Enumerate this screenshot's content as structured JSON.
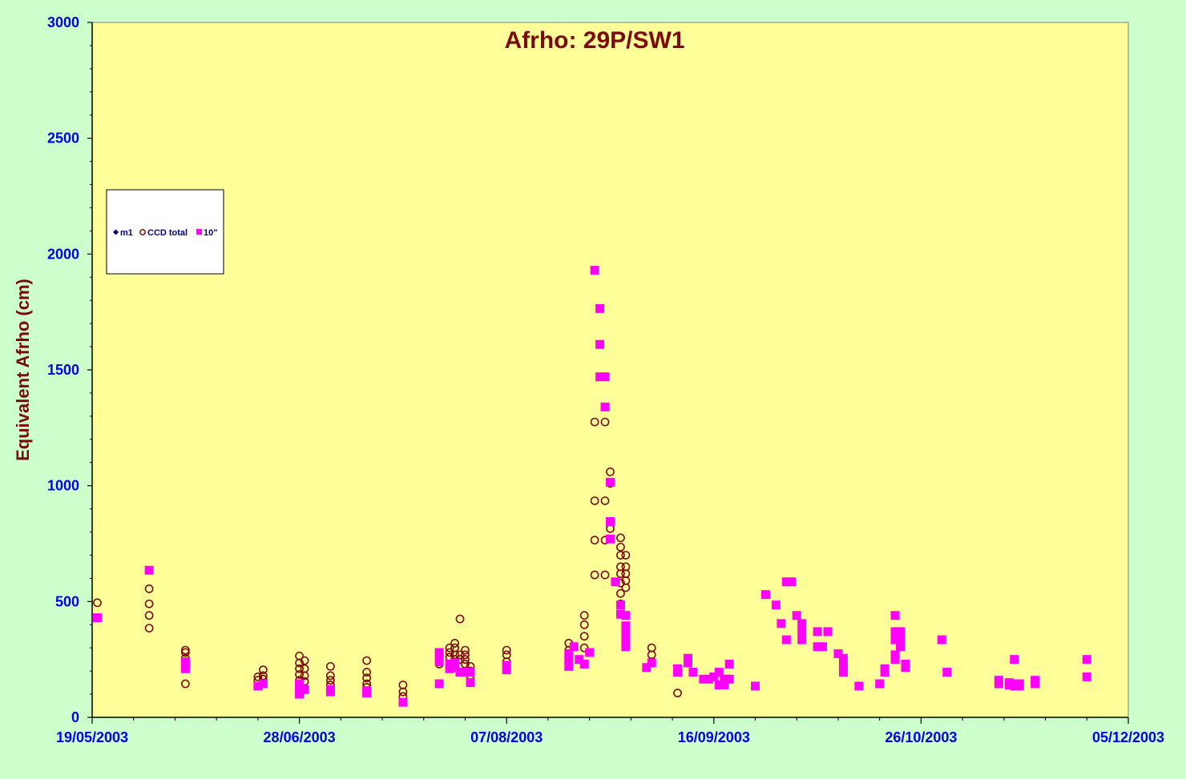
{
  "chart_data": {
    "type": "scatter",
    "title": "Afrho: 29P/SW1",
    "xlabel": "",
    "ylabel": "Equivalent Afrho (cm)",
    "x_axis": {
      "type": "date",
      "min": "2003-05-19",
      "max": "2003-12-05",
      "tick_labels": [
        "19/05/2003",
        "28/06/2003",
        "07/08/2003",
        "16/09/2003",
        "26/10/2003",
        "05/12/2003"
      ]
    },
    "ylim": [
      0,
      3000
    ],
    "y_ticks": [
      "0",
      "500",
      "1000",
      "1500",
      "2000",
      "2500",
      "3000"
    ],
    "grid": false,
    "legend_position": "upper-left",
    "colors": {
      "page_background": "#ccffcc",
      "plot_background": "#ffff99",
      "m1": "#000080",
      "ccd_total": "#7b0a0a",
      "ten_arcsec": "#ff00ff"
    },
    "series": [
      {
        "name": "m1",
        "marker": "diamond",
        "points": []
      },
      {
        "name": "CCD total",
        "marker": "open-circle",
        "points": [
          [
            "2003-05-20",
            495
          ],
          [
            "2003-05-30",
            555
          ],
          [
            "2003-05-30",
            490
          ],
          [
            "2003-05-30",
            440
          ],
          [
            "2003-05-30",
            385
          ],
          [
            "2003-06-06",
            290
          ],
          [
            "2003-06-06",
            280
          ],
          [
            "2003-06-06",
            255
          ],
          [
            "2003-06-06",
            145
          ],
          [
            "2003-06-20",
            175
          ],
          [
            "2003-06-20",
            160
          ],
          [
            "2003-06-21",
            205
          ],
          [
            "2003-06-21",
            180
          ],
          [
            "2003-06-21",
            165
          ],
          [
            "2003-06-28",
            265
          ],
          [
            "2003-06-28",
            235
          ],
          [
            "2003-06-28",
            210
          ],
          [
            "2003-06-28",
            185
          ],
          [
            "2003-06-28",
            160
          ],
          [
            "2003-06-28",
            140
          ],
          [
            "2003-06-29",
            245
          ],
          [
            "2003-06-29",
            210
          ],
          [
            "2003-06-29",
            180
          ],
          [
            "2003-06-29",
            155
          ],
          [
            "2003-07-04",
            220
          ],
          [
            "2003-07-04",
            180
          ],
          [
            "2003-07-04",
            160
          ],
          [
            "2003-07-04",
            140
          ],
          [
            "2003-07-11",
            245
          ],
          [
            "2003-07-11",
            195
          ],
          [
            "2003-07-11",
            170
          ],
          [
            "2003-07-11",
            145
          ],
          [
            "2003-07-11",
            130
          ],
          [
            "2003-07-18",
            140
          ],
          [
            "2003-07-18",
            110
          ],
          [
            "2003-07-18",
            90
          ],
          [
            "2003-07-25",
            260
          ],
          [
            "2003-07-25",
            230
          ],
          [
            "2003-07-27",
            300
          ],
          [
            "2003-07-27",
            280
          ],
          [
            "2003-07-27",
            260
          ],
          [
            "2003-07-28",
            320
          ],
          [
            "2003-07-28",
            300
          ],
          [
            "2003-07-28",
            270
          ],
          [
            "2003-07-28",
            250
          ],
          [
            "2003-07-29",
            425
          ],
          [
            "2003-07-29",
            270
          ],
          [
            "2003-07-29",
            250
          ],
          [
            "2003-07-30",
            290
          ],
          [
            "2003-07-30",
            270
          ],
          [
            "2003-07-30",
            250
          ],
          [
            "2003-07-30",
            230
          ],
          [
            "2003-07-31",
            220
          ],
          [
            "2003-07-31",
            200
          ],
          [
            "2003-07-31",
            180
          ],
          [
            "2003-08-07",
            290
          ],
          [
            "2003-08-07",
            270
          ],
          [
            "2003-08-07",
            240
          ],
          [
            "2003-08-19",
            320
          ],
          [
            "2003-08-19",
            290
          ],
          [
            "2003-08-22",
            440
          ],
          [
            "2003-08-22",
            400
          ],
          [
            "2003-08-22",
            350
          ],
          [
            "2003-08-22",
            300
          ],
          [
            "2003-08-24",
            1275
          ],
          [
            "2003-08-24",
            935
          ],
          [
            "2003-08-24",
            765
          ],
          [
            "2003-08-24",
            615
          ],
          [
            "2003-08-26",
            1275
          ],
          [
            "2003-08-26",
            935
          ],
          [
            "2003-08-26",
            765
          ],
          [
            "2003-08-26",
            615
          ],
          [
            "2003-08-27",
            1060
          ],
          [
            "2003-08-27",
            1010
          ],
          [
            "2003-08-27",
            815
          ],
          [
            "2003-08-29",
            775
          ],
          [
            "2003-08-29",
            735
          ],
          [
            "2003-08-29",
            700
          ],
          [
            "2003-08-29",
            650
          ],
          [
            "2003-08-29",
            620
          ],
          [
            "2003-08-29",
            580
          ],
          [
            "2003-08-29",
            535
          ],
          [
            "2003-08-29",
            490
          ],
          [
            "2003-08-30",
            700
          ],
          [
            "2003-08-30",
            650
          ],
          [
            "2003-08-30",
            620
          ],
          [
            "2003-08-30",
            590
          ],
          [
            "2003-08-30",
            560
          ],
          [
            "2003-09-04",
            300
          ],
          [
            "2003-09-04",
            270
          ],
          [
            "2003-09-04",
            240
          ],
          [
            "2003-09-09",
            105
          ]
        ]
      },
      {
        "name": "10\"",
        "marker": "square",
        "points": [
          [
            "2003-05-20",
            430
          ],
          [
            "2003-05-30",
            635
          ],
          [
            "2003-06-06",
            240
          ],
          [
            "2003-06-06",
            225
          ],
          [
            "2003-06-06",
            210
          ],
          [
            "2003-06-20",
            135
          ],
          [
            "2003-06-21",
            145
          ],
          [
            "2003-06-28",
            145
          ],
          [
            "2003-06-28",
            120
          ],
          [
            "2003-06-28",
            100
          ],
          [
            "2003-06-29",
            120
          ],
          [
            "2003-07-04",
            120
          ],
          [
            "2003-07-04",
            110
          ],
          [
            "2003-07-11",
            115
          ],
          [
            "2003-07-11",
            105
          ],
          [
            "2003-07-18",
            65
          ],
          [
            "2003-07-25",
            280
          ],
          [
            "2003-07-25",
            260
          ],
          [
            "2003-07-25",
            240
          ],
          [
            "2003-07-25",
            145
          ],
          [
            "2003-07-27",
            230
          ],
          [
            "2003-07-27",
            210
          ],
          [
            "2003-07-28",
            235
          ],
          [
            "2003-07-28",
            215
          ],
          [
            "2003-07-29",
            195
          ],
          [
            "2003-07-30",
            195
          ],
          [
            "2003-07-31",
            195
          ],
          [
            "2003-07-31",
            150
          ],
          [
            "2003-08-07",
            225
          ],
          [
            "2003-08-07",
            205
          ],
          [
            "2003-08-19",
            275
          ],
          [
            "2003-08-19",
            250
          ],
          [
            "2003-08-19",
            220
          ],
          [
            "2003-08-20",
            305
          ],
          [
            "2003-08-21",
            250
          ],
          [
            "2003-08-22",
            230
          ],
          [
            "2003-08-23",
            280
          ],
          [
            "2003-08-24",
            1930
          ],
          [
            "2003-08-25",
            1765
          ],
          [
            "2003-08-25",
            1610
          ],
          [
            "2003-08-25",
            1470
          ],
          [
            "2003-08-26",
            1470
          ],
          [
            "2003-08-26",
            1340
          ],
          [
            "2003-08-27",
            1015
          ],
          [
            "2003-08-27",
            845
          ],
          [
            "2003-08-27",
            770
          ],
          [
            "2003-08-28",
            585
          ],
          [
            "2003-08-29",
            485
          ],
          [
            "2003-08-29",
            445
          ],
          [
            "2003-08-30",
            440
          ],
          [
            "2003-08-30",
            395
          ],
          [
            "2003-08-30",
            365
          ],
          [
            "2003-08-30",
            335
          ],
          [
            "2003-08-30",
            305
          ],
          [
            "2003-09-03",
            215
          ],
          [
            "2003-09-04",
            235
          ],
          [
            "2003-09-09",
            210
          ],
          [
            "2003-09-09",
            195
          ],
          [
            "2003-09-11",
            255
          ],
          [
            "2003-09-11",
            235
          ],
          [
            "2003-09-12",
            195
          ],
          [
            "2003-09-14",
            165
          ],
          [
            "2003-09-15",
            165
          ],
          [
            "2003-09-16",
            175
          ],
          [
            "2003-09-17",
            195
          ],
          [
            "2003-09-17",
            140
          ],
          [
            "2003-09-18",
            165
          ],
          [
            "2003-09-18",
            140
          ],
          [
            "2003-09-19",
            230
          ],
          [
            "2003-09-19",
            165
          ],
          [
            "2003-09-24",
            135
          ],
          [
            "2003-09-26",
            530
          ],
          [
            "2003-09-28",
            485
          ],
          [
            "2003-09-29",
            405
          ],
          [
            "2003-09-30",
            335
          ],
          [
            "2003-09-30",
            585
          ],
          [
            "2003-10-01",
            585
          ],
          [
            "2003-10-02",
            440
          ],
          [
            "2003-10-03",
            405
          ],
          [
            "2003-10-03",
            370
          ],
          [
            "2003-10-03",
            335
          ],
          [
            "2003-10-06",
            370
          ],
          [
            "2003-10-06",
            305
          ],
          [
            "2003-10-07",
            305
          ],
          [
            "2003-10-08",
            370
          ],
          [
            "2003-10-10",
            275
          ],
          [
            "2003-10-11",
            255
          ],
          [
            "2003-10-11",
            220
          ],
          [
            "2003-10-11",
            195
          ],
          [
            "2003-10-14",
            135
          ],
          [
            "2003-10-18",
            145
          ],
          [
            "2003-10-19",
            210
          ],
          [
            "2003-10-19",
            195
          ],
          [
            "2003-10-21",
            440
          ],
          [
            "2003-10-21",
            370
          ],
          [
            "2003-10-21",
            335
          ],
          [
            "2003-10-21",
            270
          ],
          [
            "2003-10-21",
            250
          ],
          [
            "2003-10-22",
            370
          ],
          [
            "2003-10-22",
            335
          ],
          [
            "2003-10-22",
            305
          ],
          [
            "2003-10-23",
            230
          ],
          [
            "2003-10-23",
            215
          ],
          [
            "2003-10-30",
            335
          ],
          [
            "2003-10-31",
            195
          ],
          [
            "2003-11-10",
            160
          ],
          [
            "2003-11-10",
            145
          ],
          [
            "2003-11-12",
            150
          ],
          [
            "2003-11-12",
            140
          ],
          [
            "2003-11-13",
            250
          ],
          [
            "2003-11-13",
            145
          ],
          [
            "2003-11-13",
            135
          ],
          [
            "2003-11-14",
            145
          ],
          [
            "2003-11-14",
            135
          ],
          [
            "2003-11-17",
            160
          ],
          [
            "2003-11-17",
            145
          ],
          [
            "2003-11-27",
            250
          ],
          [
            "2003-11-27",
            175
          ]
        ]
      }
    ]
  }
}
